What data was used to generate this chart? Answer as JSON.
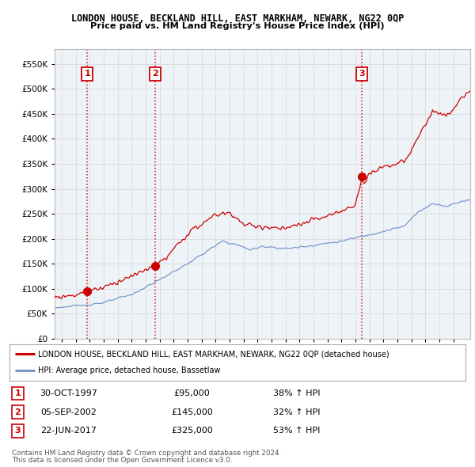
{
  "title": "LONDON HOUSE, BECKLAND HILL, EAST MARKHAM, NEWARK, NG22 0QP",
  "subtitle": "Price paid vs. HM Land Registry's House Price Index (HPI)",
  "ytick_values": [
    0,
    50000,
    100000,
    150000,
    200000,
    250000,
    300000,
    350000,
    400000,
    450000,
    500000,
    550000
  ],
  "ylim": [
    0,
    580000
  ],
  "xlim_start": 1995.5,
  "xlim_end": 2025.2,
  "sales": [
    {
      "num": 1,
      "date": "30-OCT-1997",
      "price": 95000,
      "year": 1997.83,
      "pct": "38%",
      "dir": "↑"
    },
    {
      "num": 2,
      "date": "05-SEP-2002",
      "price": 145000,
      "year": 2002.67,
      "pct": "32%",
      "dir": "↑"
    },
    {
      "num": 3,
      "date": "22-JUN-2017",
      "price": 325000,
      "year": 2017.47,
      "pct": "53%",
      "dir": "↑"
    }
  ],
  "legend_label_red": "LONDON HOUSE, BECKLAND HILL, EAST MARKHAM, NEWARK, NG22 0QP (detached house)",
  "legend_label_blue": "HPI: Average price, detached house, Bassetlaw",
  "footer1": "Contains HM Land Registry data © Crown copyright and database right 2024.",
  "footer2": "This data is licensed under the Open Government Licence v3.0.",
  "red_color": "#cc0000",
  "blue_color": "#7799cc",
  "grid_color": "#dddddd",
  "bg_color": "#ffffff",
  "plot_bg_color": "#eef3f8"
}
